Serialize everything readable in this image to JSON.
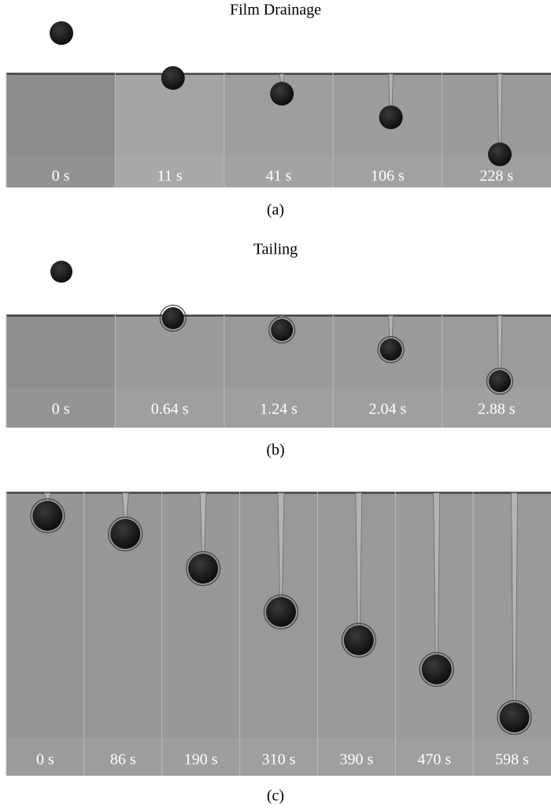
{
  "panels": [
    {
      "title": "Film Drainage",
      "frames": [
        "0 s",
        "11 s",
        "41 s",
        "106 s",
        "228 s"
      ],
      "caption": "(a)"
    },
    {
      "title": "Tailing",
      "frames": [
        "0 s",
        "0.64 s",
        "1.24 s",
        "2.04 s",
        "2.88 s"
      ],
      "caption": "(b)"
    },
    {
      "frames": [
        "0 s",
        "86 s",
        "190 s",
        "310 s",
        "390 s",
        "470 s",
        "598 s"
      ],
      "caption": "(c)"
    }
  ]
}
